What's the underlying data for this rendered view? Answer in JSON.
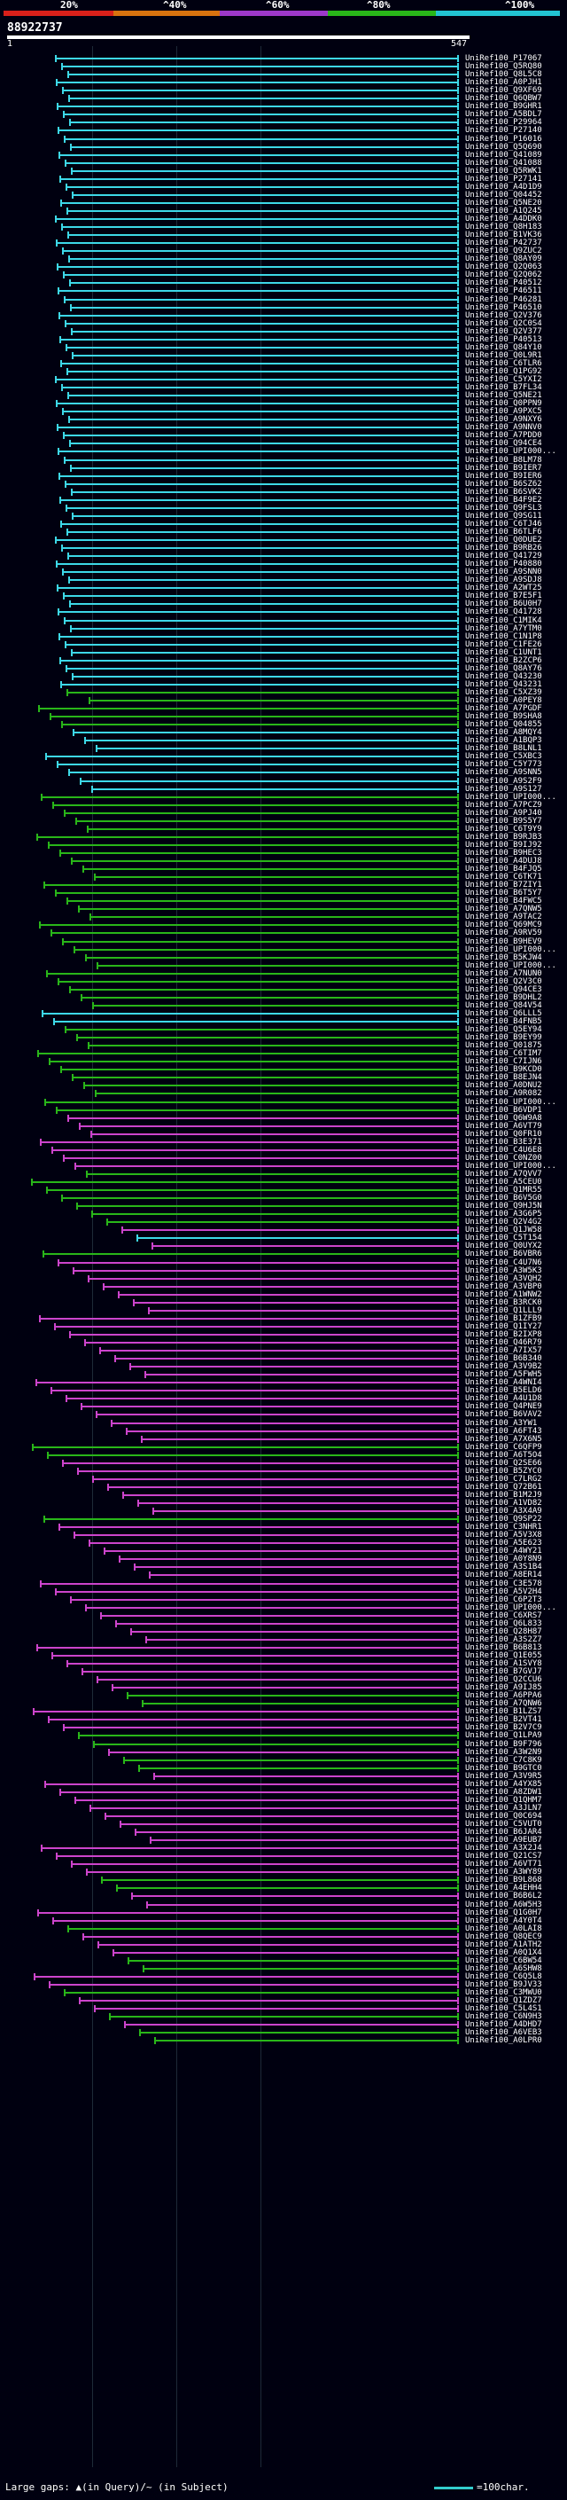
{
  "header": {
    "percent_labels": [
      "20%",
      "^40%",
      "^60%",
      "^80%",
      "^100%"
    ],
    "percent_colors": [
      "#d9201a",
      "#d8730f",
      "#9d38c9",
      "#29b619",
      "#22c3d2"
    ],
    "query_id": "88922737",
    "scale_start": "1",
    "scale_end": "547"
  },
  "hits": [
    {
      "label": "UniRef100_P17067",
      "color": "#3dd8e8"
    },
    {
      "label": "UniRef100_Q5RQ80",
      "color": "#3dd8e8"
    },
    {
      "label": "UniRef100_Q8L5C8",
      "color": "#3dd8e8"
    },
    {
      "label": "UniRef100_A0PJH1",
      "color": "#3dd8e8"
    },
    {
      "label": "UniRef100_Q9XF69",
      "color": "#3dd8e8"
    },
    {
      "label": "UniRef100_Q6QBW7",
      "color": "#3dd8e8"
    },
    {
      "label": "UniRef100_B9GHR1",
      "color": "#3dd8e8"
    },
    {
      "label": "UniRef100_A5BDL7",
      "color": "#3dd8e8"
    },
    {
      "label": "UniRef100_P29964",
      "color": "#3dd8e8"
    },
    {
      "label": "UniRef100_P27140",
      "color": "#3dd8e8"
    },
    {
      "label": "UniRef100_P16016",
      "color": "#3dd8e8"
    },
    {
      "label": "UniRef100_Q5Q690",
      "color": "#3dd8e8"
    },
    {
      "label": "UniRef100_Q41089",
      "color": "#3dd8e8"
    },
    {
      "label": "UniRef100_Q41088",
      "color": "#3dd8e8"
    },
    {
      "label": "UniRef100_Q5RWK1",
      "color": "#3dd8e8"
    },
    {
      "label": "UniRef100_P27141",
      "color": "#3dd8e8"
    },
    {
      "label": "UniRef100_A4D1D9",
      "color": "#3dd8e8"
    },
    {
      "label": "UniRef100_Q04452",
      "color": "#3dd8e8"
    },
    {
      "label": "UniRef100_Q5NE20",
      "color": "#3dd8e8"
    },
    {
      "label": "UniRef100_A1Q245",
      "color": "#3dd8e8"
    },
    {
      "label": "UniRef100_A4DDK0",
      "color": "#3dd8e8"
    },
    {
      "label": "UniRef100_Q8H183",
      "color": "#3dd8e8"
    },
    {
      "label": "UniRef100_B1VK36",
      "color": "#3dd8e8"
    },
    {
      "label": "UniRef100_P42737",
      "color": "#3dd8e8"
    },
    {
      "label": "UniRef100_Q9ZUC2",
      "color": "#3dd8e8"
    },
    {
      "label": "UniRef100_Q8AY09",
      "color": "#3dd8e8"
    },
    {
      "label": "UniRef100_Q2Q063",
      "color": "#3dd8e8"
    },
    {
      "label": "UniRef100_Q2Q062",
      "color": "#3dd8e8"
    },
    {
      "label": "UniRef100_P40512",
      "color": "#3dd8e8"
    },
    {
      "label": "UniRef100_P46511",
      "color": "#3dd8e8"
    },
    {
      "label": "UniRef100_P46281",
      "color": "#3dd8e8"
    },
    {
      "label": "UniRef100_P46510",
      "color": "#3dd8e8"
    },
    {
      "label": "UniRef100_Q2V376",
      "color": "#3dd8e8"
    },
    {
      "label": "UniRef100_Q2C0S4",
      "color": "#3dd8e8"
    },
    {
      "label": "UniRef100_Q2V377",
      "color": "#3dd8e8"
    },
    {
      "label": "UniRef100_P40513",
      "color": "#3dd8e8"
    },
    {
      "label": "UniRef100_Q84Y10",
      "color": "#3dd8e8"
    },
    {
      "label": "UniRef100_Q0L9R1",
      "color": "#3dd8e8"
    },
    {
      "label": "UniRef100_C6TLR6",
      "color": "#3dd8e8"
    },
    {
      "label": "UniRef100_Q1PG92",
      "color": "#3dd8e8"
    },
    {
      "label": "UniRef100_C5YXI2",
      "color": "#3dd8e8"
    },
    {
      "label": "UniRef100_B7FL34",
      "color": "#3dd8e8"
    },
    {
      "label": "UniRef100_Q5NE21",
      "color": "#3dd8e8"
    },
    {
      "label": "UniRef100_Q0PPN9",
      "color": "#3dd8e8"
    },
    {
      "label": "UniRef100_A9PXC5",
      "color": "#3dd8e8"
    },
    {
      "label": "UniRef100_A9NXY6",
      "color": "#3dd8e8"
    },
    {
      "label": "UniRef100_A9NNV0",
      "color": "#3dd8e8"
    },
    {
      "label": "UniRef100_A7PDD0",
      "color": "#3dd8e8"
    },
    {
      "label": "UniRef100_Q94CE4",
      "color": "#3dd8e8"
    },
    {
      "label": "UniRef100_UPI000...",
      "color": "#3dd8e8"
    },
    {
      "label": "UniRef100_B8LM78",
      "color": "#3dd8e8"
    },
    {
      "label": "UniRef100_B9IER7",
      "color": "#3dd8e8"
    },
    {
      "label": "UniRef100_B9IER6",
      "color": "#3dd8e8"
    },
    {
      "label": "UniRef100_B6SZ62",
      "color": "#3dd8e8"
    },
    {
      "label": "UniRef100_B6SVK2",
      "color": "#3dd8e8"
    },
    {
      "label": "UniRef100_B4F9E2",
      "color": "#3dd8e8"
    },
    {
      "label": "UniRef100_Q9FSL3",
      "color": "#3dd8e8"
    },
    {
      "label": "UniRef100_Q9SG11",
      "color": "#3dd8e8"
    },
    {
      "label": "UniRef100_C6TJ46",
      "color": "#3dd8e8"
    },
    {
      "label": "UniRef100_B6TLF6",
      "color": "#3dd8e8"
    },
    {
      "label": "UniRef100_Q0DUE2",
      "color": "#3dd8e8"
    },
    {
      "label": "UniRef100_B9RB26",
      "color": "#3dd8e8"
    },
    {
      "label": "UniRef100_Q41729",
      "color": "#3dd8e8"
    },
    {
      "label": "UniRef100_P40880",
      "color": "#3dd8e8"
    },
    {
      "label": "UniRef100_A9SNN0",
      "color": "#3dd8e8"
    },
    {
      "label": "UniRef100_A9SDJ8",
      "color": "#3dd8e8"
    },
    {
      "label": "UniRef100_A2WT25",
      "color": "#3dd8e8"
    },
    {
      "label": "UniRef100_B7E5F1",
      "color": "#3dd8e8"
    },
    {
      "label": "UniRef100_B6U0H7",
      "color": "#3dd8e8"
    },
    {
      "label": "UniRef100_Q41728",
      "color": "#3dd8e8"
    },
    {
      "label": "UniRef100_C1MIK4",
      "color": "#3dd8e8"
    },
    {
      "label": "UniRef100_A7YTM0",
      "color": "#3dd8e8"
    },
    {
      "label": "UniRef100_C1N1P8",
      "color": "#3dd8e8"
    },
    {
      "label": "UniRef100_C1FE26",
      "color": "#3dd8e8"
    },
    {
      "label": "UniRef100_C1UNT1",
      "color": "#3dd8e8"
    },
    {
      "label": "UniRef100_B2ZCP6",
      "color": "#3dd8e8"
    },
    {
      "label": "UniRef100_Q8AY76",
      "color": "#3dd8e8"
    },
    {
      "label": "UniRef100_Q43230",
      "color": "#3dd8e8"
    },
    {
      "label": "UniRef100_Q43231",
      "color": "#3dd8e8"
    },
    {
      "label": "UniRef100_C5XZ39",
      "color": "#29b619"
    },
    {
      "label": "UniRef100_A0PEY8",
      "color": "#29b619"
    },
    {
      "label": "UniRef100_A7PGDF",
      "color": "#29b619"
    },
    {
      "label": "UniRef100_B9SHA8",
      "color": "#29b619"
    },
    {
      "label": "UniRef100_Q04855",
      "color": "#29b619"
    },
    {
      "label": "UniRef100_A8MQY4",
      "color": "#3dd8e8"
    },
    {
      "label": "UniRef100_A1BQP3",
      "color": "#3dd8e8"
    },
    {
      "label": "UniRef100_B8LNL1",
      "color": "#3dd8e8"
    },
    {
      "label": "UniRef100_C5XBC3",
      "color": "#3dd8e8"
    },
    {
      "label": "UniRef100_C5Y773",
      "color": "#3dd8e8"
    },
    {
      "label": "UniRef100_A9SNN5",
      "color": "#3dd8e8"
    },
    {
      "label": "UniRef100_A9S2F9",
      "color": "#3dd8e8"
    },
    {
      "label": "UniRef100_A9S127",
      "color": "#3dd8e8"
    },
    {
      "label": "UniRef100_UPI000...",
      "color": "#29b619"
    },
    {
      "label": "UniRef100_A7PCZ9",
      "color": "#29b619"
    },
    {
      "label": "UniRef100_A9PJ40",
      "color": "#29b619"
    },
    {
      "label": "UniRef100_B9S5Y7",
      "color": "#29b619"
    },
    {
      "label": "UniRef100_C6T9Y9",
      "color": "#29b619"
    },
    {
      "label": "UniRef100_B9RJB3",
      "color": "#29b619"
    },
    {
      "label": "UniRef100_B9IJ92",
      "color": "#29b619"
    },
    {
      "label": "UniRef100_B9HEC3",
      "color": "#29b619"
    },
    {
      "label": "UniRef100_A4DUJ8",
      "color": "#29b619"
    },
    {
      "label": "UniRef100_B4FJQ5",
      "color": "#29b619"
    },
    {
      "label": "UniRef100_C6TK71",
      "color": "#29b619"
    },
    {
      "label": "UniRef100_B7ZIY1",
      "color": "#29b619"
    },
    {
      "label": "UniRef100_B6T5Y7",
      "color": "#29b619"
    },
    {
      "label": "UniRef100_B4FWC5",
      "color": "#29b619"
    },
    {
      "label": "UniRef100_A7QNW5",
      "color": "#29b619"
    },
    {
      "label": "UniRef100_A9TAC2",
      "color": "#29b619"
    },
    {
      "label": "UniRef100_Q69MC9",
      "color": "#29b619"
    },
    {
      "label": "UniRef100_A9RV59",
      "color": "#29b619"
    },
    {
      "label": "UniRef100_B9HEV9",
      "color": "#29b619"
    },
    {
      "label": "UniRef100_UPI000...",
      "color": "#29b619"
    },
    {
      "label": "UniRef100_B5KJW4",
      "color": "#29b619"
    },
    {
      "label": "UniRef100_UPI000...",
      "color": "#29b619"
    },
    {
      "label": "UniRef100_A7NUN0",
      "color": "#29b619"
    },
    {
      "label": "UniRef100_Q2V3C0",
      "color": "#29b619"
    },
    {
      "label": "UniRef100_Q94CE3",
      "color": "#29b619"
    },
    {
      "label": "UniRef100_B9DHL2",
      "color": "#29b619"
    },
    {
      "label": "UniRef100_Q84V54",
      "color": "#29b619"
    },
    {
      "label": "UniRef100_Q6LLL5",
      "color": "#3dd8e8"
    },
    {
      "label": "UniRef100_B4FNB5",
      "color": "#3dd8e8"
    },
    {
      "label": "UniRef100_Q5EY94",
      "color": "#29b619"
    },
    {
      "label": "UniRef100_B9EY99",
      "color": "#29b619"
    },
    {
      "label": "UniRef100_Q01875",
      "color": "#29b619"
    },
    {
      "label": "UniRef100_C6TIM7",
      "color": "#29b619"
    },
    {
      "label": "UniRef100_C7IJN6",
      "color": "#29b619"
    },
    {
      "label": "UniRef100_B9KCD0",
      "color": "#29b619"
    },
    {
      "label": "UniRef100_B8EJN4",
      "color": "#29b619"
    },
    {
      "label": "UniRef100_A0DNU2",
      "color": "#29b619"
    },
    {
      "label": "UniRef100_A9R082",
      "color": "#29b619"
    },
    {
      "label": "UniRef100_UPI000...",
      "color": "#29b619"
    },
    {
      "label": "UniRef100_B6VDP1",
      "color": "#29b619"
    },
    {
      "label": "UniRef100_Q6W9A8",
      "color": "#cc44cc"
    },
    {
      "label": "UniRef100_A6VT79",
      "color": "#cc44cc"
    },
    {
      "label": "UniRef100_Q0FR10",
      "color": "#cc44cc"
    },
    {
      "label": "UniRef100_B3E371",
      "color": "#cc44cc"
    },
    {
      "label": "UniRef100_C4U6E8",
      "color": "#cc44cc"
    },
    {
      "label": "UniRef100_C0NZ00",
      "color": "#cc44cc"
    },
    {
      "label": "UniRef100_UPI000...",
      "color": "#cc44cc"
    },
    {
      "label": "UniRef100_A7QVV7",
      "color": "#29b619"
    },
    {
      "label": "UniRef100_A5CEU0",
      "color": "#29b619"
    },
    {
      "label": "UniRef100_Q1MR55",
      "color": "#29b619"
    },
    {
      "label": "UniRef100_B6V5G0",
      "color": "#29b619"
    },
    {
      "label": "UniRef100_Q9HJ5N",
      "color": "#29b619"
    },
    {
      "label": "UniRef100_A3G6P5",
      "color": "#29b619"
    },
    {
      "label": "UniRef100_Q2V4G2",
      "color": "#29b619"
    },
    {
      "label": "UniRef100_Q1JW58",
      "color": "#cc44cc"
    },
    {
      "label": "UniRef100_C5T154",
      "color": "#3dd8e8"
    },
    {
      "label": "UniRef100_Q0UYX2",
      "color": "#cc44cc"
    },
    {
      "label": "UniRef100_B6VBR6",
      "color": "#29b619"
    },
    {
      "label": "UniRef100_C4U7N6",
      "color": "#cc44cc"
    },
    {
      "label": "UniRef100_A3W5K3",
      "color": "#cc44cc"
    },
    {
      "label": "UniRef100_A3VQH2",
      "color": "#cc44cc"
    },
    {
      "label": "UniRef100_A3VBP0",
      "color": "#cc44cc"
    },
    {
      "label": "UniRef100_A1WNW2",
      "color": "#cc44cc"
    },
    {
      "label": "UniRef100_B3RCK0",
      "color": "#cc44cc"
    },
    {
      "label": "UniRef100_Q1LLL9",
      "color": "#cc44cc"
    },
    {
      "label": "UniRef100_B1ZFB9",
      "color": "#cc44cc"
    },
    {
      "label": "UniRef100_Q1IY27",
      "color": "#cc44cc"
    },
    {
      "label": "UniRef100_B2IXP8",
      "color": "#cc44cc"
    },
    {
      "label": "UniRef100_Q46R79",
      "color": "#cc44cc"
    },
    {
      "label": "UniRef100_A7IX57",
      "color": "#cc44cc"
    },
    {
      "label": "UniRef100_B6B340",
      "color": "#cc44cc"
    },
    {
      "label": "UniRef100_A3V9B2",
      "color": "#cc44cc"
    },
    {
      "label": "UniRef100_A5FWH5",
      "color": "#cc44cc"
    },
    {
      "label": "UniRef100_A4WNI4",
      "color": "#cc44cc"
    },
    {
      "label": "UniRef100_B5ELD6",
      "color": "#cc44cc"
    },
    {
      "label": "UniRef100_A4U1D8",
      "color": "#cc44cc"
    },
    {
      "label": "UniRef100_Q4PNE9",
      "color": "#cc44cc"
    },
    {
      "label": "UniRef100_B6VAV2",
      "color": "#cc44cc"
    },
    {
      "label": "UniRef100_A3YW1",
      "color": "#cc44cc"
    },
    {
      "label": "UniRef100_A6FT43",
      "color": "#cc44cc"
    },
    {
      "label": "UniRef100_A7X6N5",
      "color": "#cc44cc"
    },
    {
      "label": "UniRef100_C6QFP9",
      "color": "#29b619"
    },
    {
      "label": "UniRef100_A6T5O4",
      "color": "#29b619"
    },
    {
      "label": "UniRef100_Q2SE66",
      "color": "#cc44cc"
    },
    {
      "label": "UniRef100_B5ZYC0",
      "color": "#cc44cc"
    },
    {
      "label": "UniRef100_C7LRG2",
      "color": "#cc44cc"
    },
    {
      "label": "UniRef100_Q72B61",
      "color": "#cc44cc"
    },
    {
      "label": "UniRef100_B1M2J9",
      "color": "#cc44cc"
    },
    {
      "label": "UniRef100_A1VD82",
      "color": "#cc44cc"
    },
    {
      "label": "UniRef100_A3X4A9",
      "color": "#cc44cc"
    },
    {
      "label": "UniRef100_Q9SP22",
      "color": "#29b619"
    },
    {
      "label": "UniRef100_C3NHR1",
      "color": "#cc44cc"
    },
    {
      "label": "UniRef100_A5V3X8",
      "color": "#cc44cc"
    },
    {
      "label": "UniRef100_A5E623",
      "color": "#cc44cc"
    },
    {
      "label": "UniRef100_A4WY21",
      "color": "#cc44cc"
    },
    {
      "label": "UniRef100_A0Y8N9",
      "color": "#cc44cc"
    },
    {
      "label": "UniRef100_A3S1B4",
      "color": "#cc44cc"
    },
    {
      "label": "UniRef100_A8ER14",
      "color": "#cc44cc"
    },
    {
      "label": "UniRef100_C3E578",
      "color": "#cc44cc"
    },
    {
      "label": "UniRef100_A5V2H4",
      "color": "#cc44cc"
    },
    {
      "label": "UniRef100_C6P2T3",
      "color": "#cc44cc"
    },
    {
      "label": "UniRef100_UPI000...",
      "color": "#cc44cc"
    },
    {
      "label": "UniRef100_C6XRS7",
      "color": "#cc44cc"
    },
    {
      "label": "UniRef100_Q6L833",
      "color": "#cc44cc"
    },
    {
      "label": "UniRef100_Q28H87",
      "color": "#cc44cc"
    },
    {
      "label": "UniRef100_A3S2Z7",
      "color": "#cc44cc"
    },
    {
      "label": "UniRef100_B6B813",
      "color": "#cc44cc"
    },
    {
      "label": "UniRef100_Q1E055",
      "color": "#cc44cc"
    },
    {
      "label": "UniRef100_A1SVY8",
      "color": "#cc44cc"
    },
    {
      "label": "UniRef100_B7GVJ7",
      "color": "#cc44cc"
    },
    {
      "label": "UniRef100_Q2CCU6",
      "color": "#cc44cc"
    },
    {
      "label": "UniRef100_A9IJ85",
      "color": "#cc44cc"
    },
    {
      "label": "UniRef100_A6PPA6",
      "color": "#29b619"
    },
    {
      "label": "UniRef100_A7QNW6",
      "color": "#29b619"
    },
    {
      "label": "UniRef100_B1LZS7",
      "color": "#cc44cc"
    },
    {
      "label": "UniRef100_B2VT41",
      "color": "#cc44cc"
    },
    {
      "label": "UniRef100_B2V7C9",
      "color": "#cc44cc"
    },
    {
      "label": "UniRef100_Q1LPA9",
      "color": "#29b619"
    },
    {
      "label": "UniRef100_B9F796",
      "color": "#29b619"
    },
    {
      "label": "UniRef100_A3W2N9",
      "color": "#cc44cc"
    },
    {
      "label": "UniRef100_C7C8K9",
      "color": "#29b619"
    },
    {
      "label": "UniRef100_B9GTC0",
      "color": "#29b619"
    },
    {
      "label": "UniRef100_A3V9R5",
      "color": "#cc44cc"
    },
    {
      "label": "UniRef100_A4YX85",
      "color": "#cc44cc"
    },
    {
      "label": "UniRef100_A8ZDW1",
      "color": "#cc44cc"
    },
    {
      "label": "UniRef100_Q1QHM7",
      "color": "#cc44cc"
    },
    {
      "label": "UniRef100_A3JLN7",
      "color": "#cc44cc"
    },
    {
      "label": "UniRef100_Q0C694",
      "color": "#cc44cc"
    },
    {
      "label": "UniRef100_C5VUT0",
      "color": "#cc44cc"
    },
    {
      "label": "UniRef100_B6JAR4",
      "color": "#cc44cc"
    },
    {
      "label": "UniRef100_A9EUB7",
      "color": "#cc44cc"
    },
    {
      "label": "UniRef100_A3X2J4",
      "color": "#cc44cc"
    },
    {
      "label": "UniRef100_Q21CS7",
      "color": "#cc44cc"
    },
    {
      "label": "UniRef100_A6VT71",
      "color": "#cc44cc"
    },
    {
      "label": "UniRef100_A3WY89",
      "color": "#cc44cc"
    },
    {
      "label": "UniRef100_B9L868",
      "color": "#29b619"
    },
    {
      "label": "UniRef100_A4EHH4",
      "color": "#29b619"
    },
    {
      "label": "UniRef100_B6B6L2",
      "color": "#cc44cc"
    },
    {
      "label": "UniRef100_A6W5H3",
      "color": "#cc44cc"
    },
    {
      "label": "UniRef100_Q1G0H7",
      "color": "#cc44cc"
    },
    {
      "label": "UniRef100_A4Y0T4",
      "color": "#cc44cc"
    },
    {
      "label": "UniRef100_A0LAI8",
      "color": "#29b619"
    },
    {
      "label": "UniRef100_Q8QEC9",
      "color": "#cc44cc"
    },
    {
      "label": "UniRef100_A1ATH2",
      "color": "#cc44cc"
    },
    {
      "label": "UniRef100_A0Q1X4",
      "color": "#cc44cc"
    },
    {
      "label": "UniRef100_C6BW54",
      "color": "#29b619"
    },
    {
      "label": "UniRef100_A6SHW8",
      "color": "#29b619"
    },
    {
      "label": "UniRef100_C6Q5L8",
      "color": "#cc44cc"
    },
    {
      "label": "UniRef100_B9JV33",
      "color": "#cc44cc"
    },
    {
      "label": "UniRef100_C3MWU0",
      "color": "#29b619"
    },
    {
      "label": "UniRef100_Q1ZDZ7",
      "color": "#cc44cc"
    },
    {
      "label": "UniRef100_C5L4S1",
      "color": "#cc44cc"
    },
    {
      "label": "UniRef100_C6N9H3",
      "color": "#29b619"
    },
    {
      "label": "UniRef100_A4DHD7",
      "color": "#cc44cc"
    },
    {
      "label": "UniRef100_A6VEB3",
      "color": "#29b619"
    },
    {
      "label": "UniRef100_A0LPR0",
      "color": "#29b619"
    }
  ],
  "footer": {
    "gaps_text": "Large gaps: ▲(in Query)/~ (in Subject)",
    "legend_text": "=100char."
  }
}
